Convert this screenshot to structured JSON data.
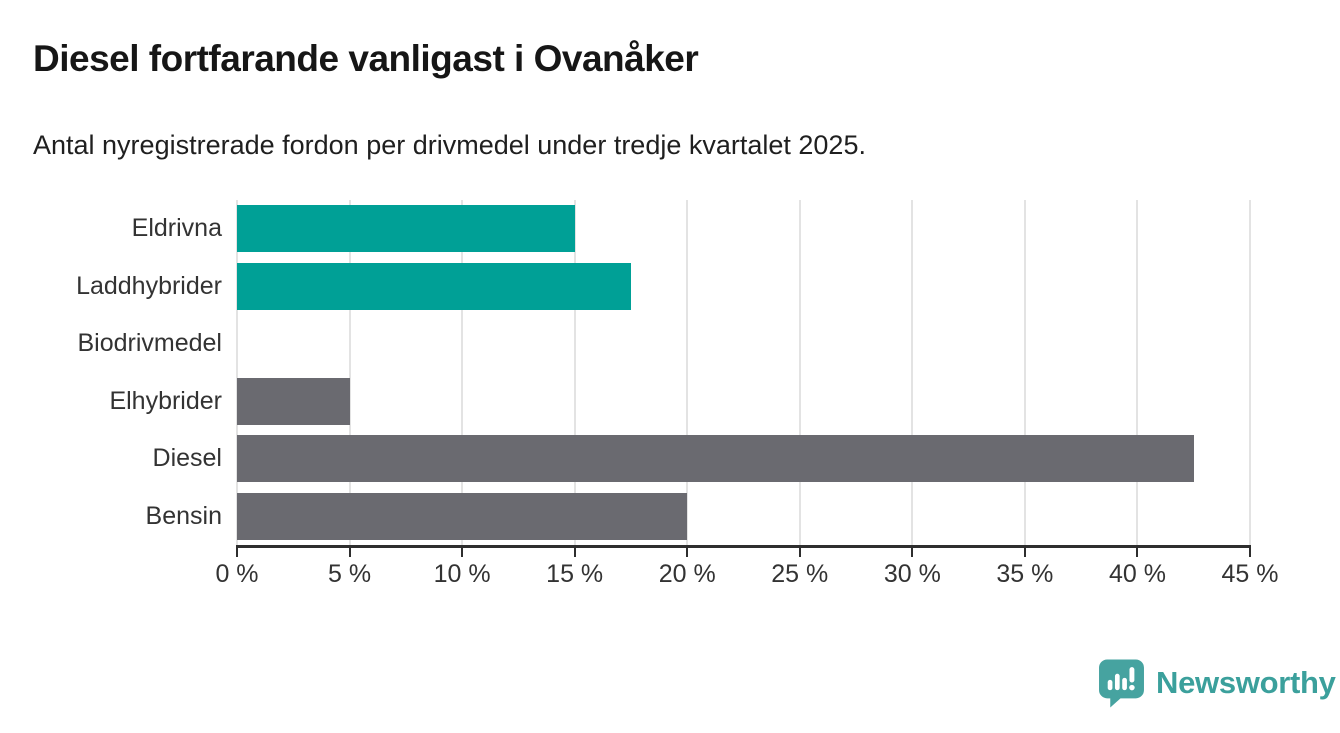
{
  "header": {
    "title": "Diesel fortfarande vanligast i Ovanåker",
    "subtitle": "Antal nyregistrerade fordon per drivmedel under tredje kvartalet 2025."
  },
  "chart_data": {
    "type": "bar",
    "orientation": "horizontal",
    "title": "Diesel fortfarande vanligast i Ovanåker",
    "subtitle": "Antal nyregistrerade fordon per drivmedel under tredje kvartalet 2025.",
    "categories": [
      "Eldrivna",
      "Laddhybrider",
      "Biodrivmedel",
      "Elhybrider",
      "Diesel",
      "Bensin"
    ],
    "values": [
      15,
      17.5,
      0,
      5,
      42.5,
      20
    ],
    "unit": "%",
    "bar_colors": [
      "#00a096",
      "#00a096",
      "#6a6a70",
      "#6a6a70",
      "#6a6a70",
      "#6a6a70"
    ],
    "xlim": [
      0,
      45
    ],
    "x_ticks": [
      0,
      5,
      10,
      15,
      20,
      25,
      30,
      35,
      40,
      45
    ],
    "x_tick_labels": [
      "0 %",
      "5 %",
      "10 %",
      "15 %",
      "20 %",
      "25 %",
      "30 %",
      "35 %",
      "40 %",
      "45 %"
    ],
    "grid": true,
    "legend": false
  },
  "branding": {
    "logo_text": "Newsworthy",
    "logo_icon": "newsworthy-speech-bubble-bar-chart-icon",
    "logo_color": "#3ba09c"
  },
  "colors": {
    "teal": "#00a096",
    "gray": "#6a6a70",
    "gridline": "#e3e3e3",
    "axis": "#2e2e2e"
  }
}
